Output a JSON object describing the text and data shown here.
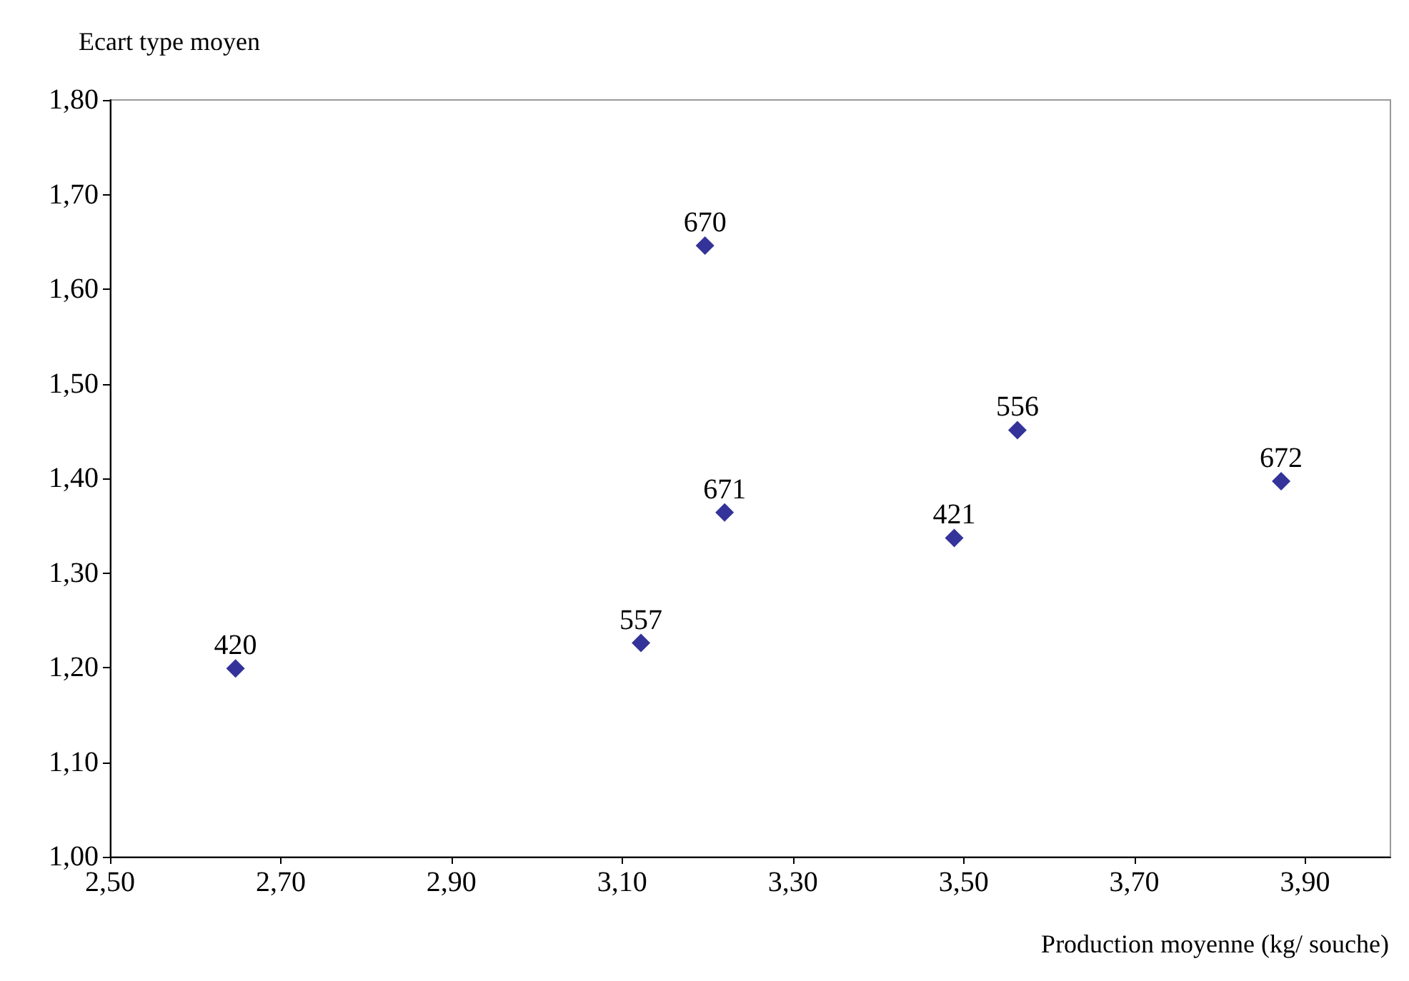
{
  "chart_data": {
    "type": "scatter",
    "xlabel": "Production moyenne (kg/ souche)",
    "ylabel": "Ecart type moyen",
    "x": [
      2.647,
      3.122,
      3.197,
      3.22,
      3.489,
      3.563,
      3.872
    ],
    "values": [
      1.199,
      1.226,
      1.646,
      1.364,
      1.337,
      1.451,
      1.397
    ],
    "color": "#000080",
    "marker": "diamond",
    "xlim": [
      2.5,
      4.0
    ],
    "xticks": [
      {
        "value": 2.5,
        "label": "2,50"
      },
      {
        "value": 2.7,
        "label": "2,70"
      },
      {
        "value": 2.9,
        "label": "2,90"
      },
      {
        "value": 3.1,
        "label": "3,10"
      },
      {
        "value": 3.3,
        "label": "3,30"
      },
      {
        "value": 3.5,
        "label": "3,50"
      },
      {
        "value": 3.7,
        "label": "3,70"
      },
      {
        "value": 3.9,
        "label": "3,90"
      }
    ],
    "ylim": [
      1.0,
      1.8
    ],
    "yticks": [
      {
        "value": 1.0,
        "label": "1,00"
      },
      {
        "value": 1.1,
        "label": "1,10"
      },
      {
        "value": 1.2,
        "label": "1,20"
      },
      {
        "value": 1.3,
        "label": "1,30"
      },
      {
        "value": 1.4,
        "label": "1,40"
      },
      {
        "value": 1.5,
        "label": "1,50"
      },
      {
        "value": 1.6,
        "label": "1,60"
      },
      {
        "value": 1.7,
        "label": "1,70"
      },
      {
        "value": 1.8,
        "label": "1,80"
      }
    ],
    "annotations": [
      {
        "text": "420",
        "x": 2.647,
        "y": 1.199
      },
      {
        "text": "557",
        "x": 3.122,
        "y": 1.226
      },
      {
        "text": "670",
        "x": 3.197,
        "y": 1.646
      },
      {
        "text": "671",
        "x": 3.22,
        "y": 1.364
      },
      {
        "text": "421",
        "x": 3.489,
        "y": 1.337
      },
      {
        "text": "556",
        "x": 3.563,
        "y": 1.451
      },
      {
        "text": "672",
        "x": 3.872,
        "y": 1.397
      }
    ]
  }
}
